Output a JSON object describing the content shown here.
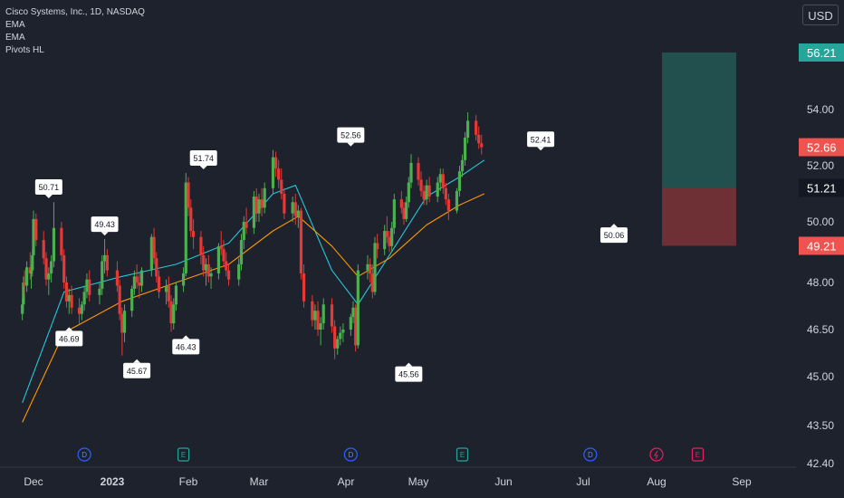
{
  "legend": {
    "symbol": "Cisco Systems, Inc., 1D, NASDAQ",
    "ema1": "EMA",
    "ema2": "EMA",
    "pivots": "Pivots HL"
  },
  "currency_button": "USD",
  "colors": {
    "up": "#26a69a",
    "down": "#ef5350",
    "candle_up": "#4caf50",
    "candle_down": "#e53935",
    "ema_fast": "#26c6da",
    "ema_slow": "#ff9800",
    "target_zone": "#21504f",
    "stop_zone": "#6e2f35",
    "background": "#1e222d",
    "axis_text": "#d1d4dc"
  },
  "chart_data": {
    "type": "candlestick",
    "title": "Cisco Systems, Inc., 1D, NASDAQ",
    "xlabel": "",
    "ylabel": "",
    "x_ticks": [
      "Dec",
      "2023",
      "Feb",
      "Mar",
      "Apr",
      "May",
      "Jun",
      "Jul",
      "Aug",
      "Sep"
    ],
    "y_ticks": [
      "54.00",
      "52.00",
      "50.00",
      "48.00",
      "46.50",
      "45.00",
      "43.50",
      "42.40"
    ],
    "ylim": [
      42.4,
      57.5
    ],
    "grid": false,
    "price_labels": [
      {
        "value": "56.21",
        "kind": "target"
      },
      {
        "value": "52.66",
        "kind": "last"
      },
      {
        "value": "51.21",
        "kind": "entry"
      },
      {
        "value": "49.21",
        "kind": "stop"
      }
    ],
    "pivots": [
      {
        "date": "2022-12-07",
        "value": "50.71",
        "type": "high"
      },
      {
        "date": "2022-12-15",
        "value": "46.69",
        "type": "low"
      },
      {
        "date": "2022-12-29",
        "value": "49.43",
        "type": "high"
      },
      {
        "date": "2023-01-11",
        "value": "45.67",
        "type": "low"
      },
      {
        "date": "2023-01-31",
        "value": "46.43",
        "type": "low"
      },
      {
        "date": "2023-02-07",
        "value": "51.74",
        "type": "high"
      },
      {
        "date": "2023-04-03",
        "value": "52.56",
        "type": "high"
      },
      {
        "date": "2023-04-27",
        "value": "45.56",
        "type": "low"
      },
      {
        "date": "2023-06-15",
        "value": "52.41",
        "type": "high"
      },
      {
        "date": "2023-07-14",
        "value": "50.06",
        "type": "low"
      }
    ],
    "events": [
      {
        "date": "2022-12-21",
        "type": "D"
      },
      {
        "date": "2023-01-30",
        "type": "E"
      },
      {
        "date": "2023-04-03",
        "type": "D"
      },
      {
        "date": "2023-05-17",
        "type": "E"
      },
      {
        "date": "2023-07-04",
        "type": "D"
      },
      {
        "date": "2023-08-01",
        "type": "split"
      },
      {
        "date": "2023-08-16",
        "type": "E"
      }
    ],
    "position": {
      "target": 56.21,
      "entry": 51.21,
      "stop": 49.21
    },
    "series": [
      {
        "kind": "candles",
        "start_date": "2022-11-21",
        "ohlc": [
          [
            47.0,
            47.5,
            46.8,
            47.3
          ],
          [
            47.3,
            48.2,
            47.1,
            48.0
          ],
          [
            48.0,
            48.4,
            47.6,
            47.9
          ],
          [
            47.9,
            48.7,
            47.7,
            48.5
          ],
          [
            48.5,
            49.0,
            48.1,
            48.3
          ],
          [
            48.3,
            48.6,
            47.8,
            48.4
          ],
          [
            48.4,
            49.1,
            48.2,
            48.9
          ],
          [
            48.9,
            50.4,
            48.8,
            50.1
          ],
          [
            50.1,
            50.3,
            49.2,
            49.4
          ],
          [
            49.4,
            49.7,
            48.6,
            48.8
          ],
          [
            48.8,
            49.0,
            47.9,
            48.1
          ],
          [
            48.1,
            48.5,
            47.6,
            48.3
          ],
          [
            48.3,
            48.9,
            48.0,
            48.7
          ],
          [
            48.7,
            50.7,
            48.5,
            49.8
          ],
          [
            49.8,
            50.0,
            48.7,
            48.9
          ],
          [
            48.9,
            49.1,
            47.8,
            48.0
          ],
          [
            48.0,
            48.2,
            47.2,
            47.4
          ],
          [
            47.4,
            47.8,
            47.0,
            47.6
          ],
          [
            47.6,
            47.9,
            47.0,
            47.2
          ],
          [
            47.2,
            47.5,
            46.69,
            47.0
          ],
          [
            47.0,
            47.4,
            46.8,
            47.3
          ],
          [
            47.3,
            47.9,
            47.1,
            47.7
          ],
          [
            47.7,
            48.3,
            47.5,
            48.1
          ],
          [
            48.1,
            48.4,
            47.4,
            47.6
          ],
          [
            47.6,
            48.0,
            47.3,
            47.8
          ],
          [
            47.8,
            48.9,
            47.6,
            48.7
          ],
          [
            48.7,
            49.43,
            48.3,
            48.9
          ],
          [
            48.9,
            49.1,
            48.2,
            48.4
          ],
          [
            48.4,
            48.7,
            47.7,
            47.9
          ],
          [
            47.9,
            48.1,
            46.8,
            47.0
          ],
          [
            47.0,
            47.2,
            45.67,
            46.4
          ],
          [
            46.4,
            47.3,
            46.1,
            47.1
          ],
          [
            47.1,
            47.9,
            46.9,
            47.8
          ],
          [
            47.8,
            48.4,
            47.6,
            48.2
          ],
          [
            48.2,
            48.6,
            47.8,
            48.0
          ],
          [
            48.0,
            48.3,
            47.5,
            47.9
          ],
          [
            47.9,
            48.5,
            47.7,
            48.4
          ],
          [
            48.4,
            49.6,
            48.2,
            49.5
          ],
          [
            49.5,
            49.8,
            48.6,
            48.8
          ],
          [
            48.8,
            49.0,
            48.0,
            48.2
          ],
          [
            48.2,
            48.4,
            47.5,
            47.7
          ],
          [
            47.7,
            48.1,
            47.3,
            47.9
          ],
          [
            47.9,
            48.2,
            47.2,
            47.4
          ],
          [
            47.4,
            47.6,
            46.43,
            46.7
          ],
          [
            46.7,
            47.5,
            46.5,
            47.3
          ],
          [
            47.3,
            48.0,
            47.1,
            47.9
          ],
          [
            47.9,
            48.5,
            47.7,
            48.3
          ],
          [
            48.3,
            51.74,
            48.2,
            51.4
          ],
          [
            51.4,
            51.6,
            50.2,
            50.5
          ],
          [
            50.5,
            50.8,
            49.5,
            49.7
          ],
          [
            49.7,
            50.1,
            49.1,
            49.5
          ],
          [
            49.5,
            49.7,
            48.6,
            48.9
          ],
          [
            48.9,
            49.2,
            48.2,
            48.4
          ],
          [
            48.4,
            48.8,
            47.9,
            48.6
          ],
          [
            48.6,
            48.9,
            48.0,
            48.2
          ],
          [
            48.2,
            48.5,
            47.8,
            48.3
          ],
          [
            48.3,
            49.3,
            48.1,
            49.2
          ],
          [
            49.2,
            49.7,
            48.9,
            49.1
          ],
          [
            49.1,
            49.4,
            48.5,
            48.7
          ],
          [
            48.7,
            49.0,
            48.2,
            48.4
          ],
          [
            48.4,
            48.6,
            47.9,
            48.1
          ],
          [
            48.1,
            48.8,
            47.9,
            48.6
          ],
          [
            48.6,
            49.6,
            48.4,
            49.4
          ],
          [
            49.4,
            50.2,
            49.1,
            50.0
          ],
          [
            50.0,
            50.5,
            49.6,
            49.8
          ],
          [
            49.8,
            51.1,
            49.6,
            50.9
          ],
          [
            50.9,
            51.2,
            50.0,
            50.3
          ],
          [
            50.3,
            51.0,
            50.0,
            50.8
          ],
          [
            50.8,
            51.2,
            50.2,
            50.5
          ],
          [
            50.5,
            51.4,
            50.3,
            51.2
          ],
          [
            51.2,
            52.56,
            51.0,
            52.3
          ],
          [
            52.3,
            52.5,
            51.6,
            51.9
          ],
          [
            51.9,
            52.2,
            51.2,
            51.5
          ],
          [
            51.5,
            51.9,
            50.8,
            51.0
          ],
          [
            51.0,
            51.2,
            50.1,
            50.3
          ],
          [
            50.3,
            50.9,
            50.0,
            50.7
          ],
          [
            50.7,
            51.0,
            49.9,
            50.2
          ],
          [
            50.2,
            50.6,
            49.8,
            50.4
          ],
          [
            50.4,
            50.5,
            48.1,
            48.3
          ],
          [
            48.3,
            48.6,
            47.2,
            47.4
          ],
          [
            47.4,
            47.6,
            46.6,
            46.8
          ],
          [
            46.8,
            47.3,
            46.5,
            47.1
          ],
          [
            47.1,
            47.4,
            46.3,
            46.5
          ],
          [
            46.5,
            46.9,
            46.0,
            46.7
          ],
          [
            46.7,
            47.5,
            46.5,
            47.3
          ],
          [
            47.3,
            47.5,
            46.4,
            46.6
          ],
          [
            46.6,
            46.8,
            45.56,
            45.9
          ],
          [
            45.9,
            46.3,
            45.7,
            46.2
          ],
          [
            46.2,
            46.6,
            46.0,
            46.4
          ],
          [
            46.4,
            46.7,
            46.1,
            46.5
          ],
          [
            46.5,
            47.0,
            46.3,
            46.9
          ],
          [
            46.9,
            47.4,
            46.7,
            47.2
          ],
          [
            47.2,
            47.3,
            45.8,
            46.0
          ],
          [
            46.0,
            48.6,
            45.9,
            48.4
          ],
          [
            48.4,
            48.9,
            48.1,
            48.6
          ],
          [
            48.6,
            48.8,
            48.0,
            48.3
          ],
          [
            48.3,
            48.6,
            47.5,
            47.7
          ],
          [
            47.7,
            49.5,
            47.6,
            49.3
          ],
          [
            49.3,
            49.6,
            48.8,
            49.1
          ],
          [
            49.1,
            49.9,
            48.9,
            49.7
          ],
          [
            49.7,
            50.2,
            49.3,
            49.5
          ],
          [
            49.5,
            49.7,
            49.0,
            49.2
          ],
          [
            49.2,
            50.0,
            49.0,
            49.8
          ],
          [
            49.8,
            51.0,
            49.6,
            50.8
          ],
          [
            50.8,
            51.1,
            50.3,
            50.5
          ],
          [
            50.5,
            50.7,
            49.9,
            50.1
          ],
          [
            50.1,
            50.9,
            50.0,
            50.7
          ],
          [
            50.7,
            51.6,
            50.5,
            51.4
          ],
          [
            51.4,
            52.41,
            51.2,
            52.1
          ],
          [
            52.1,
            52.3,
            51.3,
            51.5
          ],
          [
            51.5,
            51.8,
            50.9,
            51.1
          ],
          [
            51.1,
            51.3,
            50.6,
            50.8
          ],
          [
            50.8,
            51.5,
            50.6,
            51.3
          ],
          [
            51.3,
            51.6,
            50.7,
            50.9
          ],
          [
            50.9,
            51.6,
            50.7,
            51.4
          ],
          [
            51.4,
            51.9,
            51.1,
            51.7
          ],
          [
            51.7,
            51.9,
            51.0,
            51.2
          ],
          [
            51.2,
            51.4,
            50.6,
            50.8
          ],
          [
            50.8,
            51.0,
            50.06,
            50.4
          ],
          [
            50.4,
            51.2,
            50.3,
            51.1
          ],
          [
            51.1,
            52.0,
            50.9,
            51.8
          ],
          [
            51.8,
            52.4,
            51.6,
            52.2
          ],
          [
            52.2,
            53.2,
            52.0,
            53.0
          ],
          [
            53.0,
            53.9,
            52.8,
            53.6
          ],
          [
            53.6,
            53.8,
            52.9,
            53.1
          ],
          [
            53.1,
            53.4,
            52.6,
            52.8
          ],
          [
            52.8,
            53.1,
            52.4,
            52.66
          ]
        ]
      },
      {
        "kind": "line",
        "name": "EMA",
        "role": "fast",
        "points": [
          [
            0,
            44.2
          ],
          [
            15,
            47.7
          ],
          [
            30,
            48.2
          ],
          [
            45,
            48.6
          ],
          [
            60,
            49.3
          ],
          [
            70,
            51.0
          ],
          [
            76,
            51.3
          ],
          [
            85,
            48.4
          ],
          [
            93,
            47.3
          ],
          [
            101,
            48.9
          ],
          [
            112,
            50.9
          ],
          [
            120,
            51.6
          ],
          [
            127,
            52.2
          ]
        ]
      },
      {
        "kind": "line",
        "name": "EMA",
        "role": "slow",
        "points": [
          [
            0,
            43.6
          ],
          [
            15,
            46.4
          ],
          [
            30,
            47.4
          ],
          [
            45,
            48.0
          ],
          [
            60,
            48.6
          ],
          [
            70,
            49.7
          ],
          [
            77,
            50.2
          ],
          [
            85,
            49.2
          ],
          [
            93,
            48.2
          ],
          [
            101,
            48.8
          ],
          [
            112,
            49.9
          ],
          [
            120,
            50.6
          ],
          [
            127,
            51.0
          ]
        ]
      }
    ]
  }
}
